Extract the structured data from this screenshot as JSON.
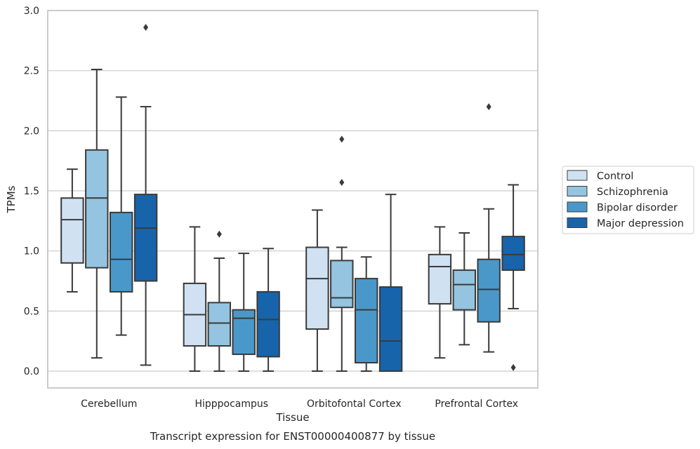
{
  "chart_data": {
    "type": "boxplot",
    "xlabel": "Tissue",
    "ylabel": "TPMs",
    "caption": "Transcript expression for ENST00000400877 by tissue",
    "ylim": [
      -0.14,
      3.0
    ],
    "yticks": [
      "0.0",
      "0.5",
      "1.0",
      "1.5",
      "2.0",
      "2.5",
      "3.0"
    ],
    "grid": true,
    "legend_position": "right",
    "categories": [
      "Cerebellum",
      "Hipppocampus",
      "Orbitofontal Cortex",
      "Prefrontal Cortex"
    ],
    "series": [
      {
        "name": "Control",
        "color": "#d0e1f2",
        "boxes": [
          {
            "whislo": 0.66,
            "q1": 0.9,
            "med": 1.26,
            "q3": 1.44,
            "whishi": 1.68,
            "fliers": []
          },
          {
            "whislo": 0.0,
            "q1": 0.21,
            "med": 0.47,
            "q3": 0.73,
            "whishi": 1.2,
            "fliers": []
          },
          {
            "whislo": 0.0,
            "q1": 0.35,
            "med": 0.77,
            "q3": 1.03,
            "whishi": 1.34,
            "fliers": []
          },
          {
            "whislo": 0.11,
            "q1": 0.56,
            "med": 0.87,
            "q3": 0.97,
            "whishi": 1.2,
            "fliers": []
          }
        ]
      },
      {
        "name": "Schizophrenia",
        "color": "#94c4df",
        "boxes": [
          {
            "whislo": 0.11,
            "q1": 0.86,
            "med": 1.44,
            "q3": 1.84,
            "whishi": 2.51,
            "fliers": []
          },
          {
            "whislo": 0.0,
            "q1": 0.21,
            "med": 0.4,
            "q3": 0.57,
            "whishi": 0.94,
            "fliers": [
              1.14
            ]
          },
          {
            "whislo": 0.0,
            "q1": 0.53,
            "med": 0.61,
            "q3": 0.92,
            "whishi": 1.03,
            "fliers": [
              1.57,
              1.93
            ]
          },
          {
            "whislo": 0.22,
            "q1": 0.51,
            "med": 0.72,
            "q3": 0.84,
            "whishi": 1.15,
            "fliers": []
          }
        ]
      },
      {
        "name": "Bipolar disorder",
        "color": "#4a98c9",
        "boxes": [
          {
            "whislo": 0.3,
            "q1": 0.66,
            "med": 0.93,
            "q3": 1.32,
            "whishi": 2.28,
            "fliers": []
          },
          {
            "whislo": 0.0,
            "q1": 0.14,
            "med": 0.44,
            "q3": 0.51,
            "whishi": 0.98,
            "fliers": []
          },
          {
            "whislo": 0.0,
            "q1": 0.07,
            "med": 0.51,
            "q3": 0.77,
            "whishi": 0.95,
            "fliers": []
          },
          {
            "whislo": 0.16,
            "q1": 0.41,
            "med": 0.68,
            "q3": 0.93,
            "whishi": 1.35,
            "fliers": [
              2.2
            ]
          }
        ]
      },
      {
        "name": "Major depression",
        "color": "#1764ab",
        "boxes": [
          {
            "whislo": 0.05,
            "q1": 0.75,
            "med": 1.19,
            "q3": 1.47,
            "whishi": 2.2,
            "fliers": [
              2.86
            ]
          },
          {
            "whislo": 0.0,
            "q1": 0.12,
            "med": 0.43,
            "q3": 0.66,
            "whishi": 1.02,
            "fliers": []
          },
          {
            "whislo": 0.0,
            "q1": 0.0,
            "med": 0.25,
            "q3": 0.7,
            "whishi": 1.47,
            "fliers": []
          },
          {
            "whislo": 0.52,
            "q1": 0.84,
            "med": 0.97,
            "q3": 1.12,
            "whishi": 1.55,
            "fliers": [
              0.03
            ]
          }
        ]
      }
    ]
  }
}
